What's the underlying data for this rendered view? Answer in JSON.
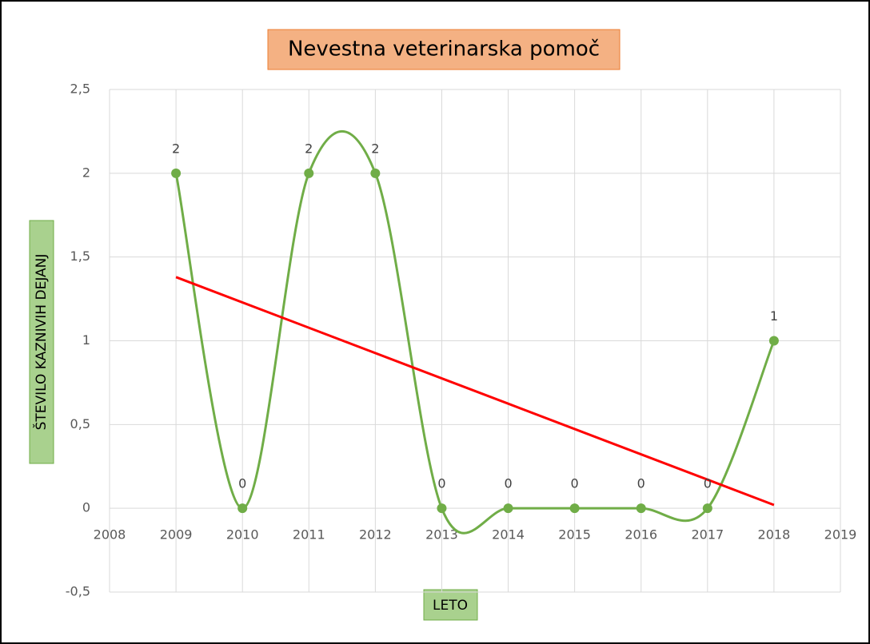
{
  "chart_data": {
    "type": "scatter",
    "title": "Nevestna veterinarska pomoč",
    "x_label": "LETO",
    "y_label": "ŠTEVILO KAZNIVIH DEJANJ",
    "x": [
      2009,
      2010,
      2011,
      2012,
      2013,
      2014,
      2015,
      2016,
      2017,
      2018
    ],
    "values": [
      2,
      0,
      2,
      2,
      0,
      0,
      0,
      0,
      0,
      1
    ],
    "color": "#70ad47",
    "smooth": true,
    "trendline": {
      "color": "#ff0000",
      "x": [
        2009,
        2018
      ],
      "values": [
        1.38,
        0.02
      ]
    },
    "xlim": [
      2008,
      2019
    ],
    "xticks": [
      2008,
      2009,
      2010,
      2011,
      2012,
      2013,
      2014,
      2015,
      2016,
      2017,
      2018,
      2019
    ],
    "ylim": [
      -0.5,
      2.5
    ],
    "yticks": [
      {
        "value": -0.5,
        "label": "-0,5"
      },
      0,
      {
        "value": 0.5,
        "label": "0,5"
      },
      1,
      {
        "value": 1.5,
        "label": "1,5"
      },
      2,
      {
        "value": 2.5,
        "label": "2,5"
      }
    ],
    "grid": true
  }
}
